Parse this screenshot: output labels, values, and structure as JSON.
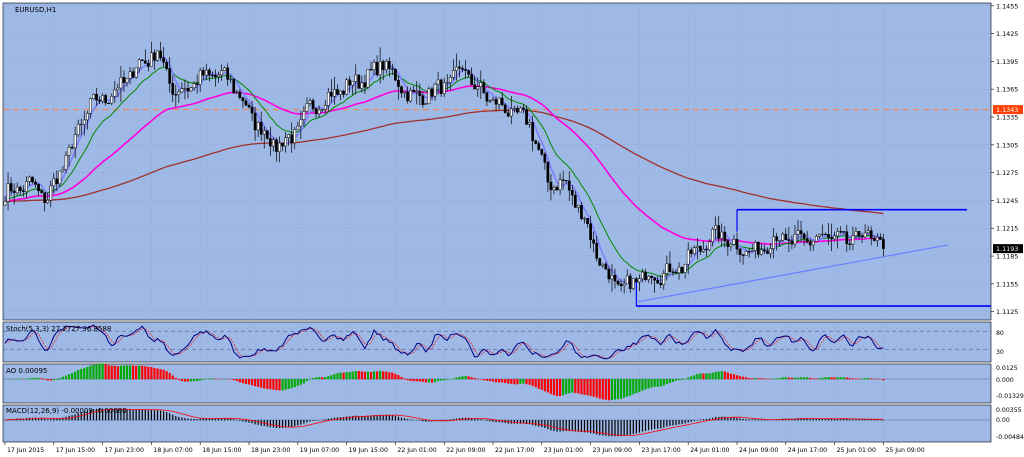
{
  "window": {
    "symbol_label": "EURUSD,H1"
  },
  "colors": {
    "plot_bg": "#9fb9e6",
    "grid": "#8aa2cf",
    "candle": "#000000",
    "ma_fast": "#8080ff",
    "ma_mid": "#008800",
    "ma_slow": "#ff00dd",
    "ma_long": "#a0302a",
    "hline": "#ff8040",
    "price_box": "#ff4000",
    "cur_box": "#000000",
    "channel": "#0000ff",
    "trend": "#6a7cff",
    "stoch_main": "#000080",
    "stoch_signal": "#ff0000",
    "ao_up": "#00aa00",
    "ao_down": "#ff0000",
    "macd_hist": "#000000",
    "macd_signal": "#ff0000"
  },
  "price_axis": {
    "labels": [
      "1.1455",
      "1.1425",
      "1.1395",
      "1.1365",
      "1.1335",
      "1.1305",
      "1.1275",
      "1.1245",
      "1.1215",
      "1.1185",
      "1.1155",
      "1.1125"
    ],
    "hline_label": "1.1343",
    "current_label": "1.1193"
  },
  "time_axis": {
    "labels": [
      "17 Jun 2015",
      "17 Jun 15:00",
      "17 Jun 23:00",
      "18 Jun 07:00",
      "18 Jun 15:00",
      "18 Jun 23:00",
      "19 Jun 07:00",
      "19 Jun 15:00",
      "22 Jun 01:00",
      "22 Jun 09:00",
      "22 Jun 17:00",
      "23 Jun 01:00",
      "23 Jun 09:00",
      "23 Jun 17:00",
      "24 Jun 01:00",
      "24 Jun 09:00",
      "24 Jun 17:00",
      "25 Jun 01:00",
      "25 Jun 09:00"
    ]
  },
  "stoch": {
    "label": "Stoch(5,3,3) 27.2727 36.8588",
    "levels": [
      "80",
      "30"
    ]
  },
  "ao": {
    "label": "AO 0.00095",
    "levels": [
      "0.0125",
      "0.000",
      "-0.01329"
    ]
  },
  "macd": {
    "label": "MACD(12,26,9) -0.00009 -0.00080",
    "levels": [
      "0.00355",
      "0.00",
      "-0.00484"
    ]
  },
  "chart_data": {
    "type": "candlestick",
    "symbol": "EURUSD",
    "timeframe": "H1",
    "price_range": [
      1.1116,
      1.1458
    ],
    "horizontal_line": 1.1343,
    "current_price": 1.1193,
    "channel_lines": [
      1.1235,
      1.1131
    ],
    "keypoints": [
      [
        0,
        1.1252
      ],
      [
        8,
        1.1263
      ],
      [
        14,
        1.1247
      ],
      [
        20,
        1.129
      ],
      [
        28,
        1.1348
      ],
      [
        36,
        1.1362
      ],
      [
        44,
        1.1392
      ],
      [
        50,
        1.1405
      ],
      [
        56,
        1.136
      ],
      [
        62,
        1.1372
      ],
      [
        68,
        1.1382
      ],
      [
        74,
        1.1375
      ],
      [
        80,
        1.134
      ],
      [
        88,
        1.1305
      ],
      [
        94,
        1.1312
      ],
      [
        100,
        1.1345
      ],
      [
        108,
        1.136
      ],
      [
        114,
        1.1372
      ],
      [
        120,
        1.138
      ],
      [
        124,
        1.1395
      ],
      [
        128,
        1.1375
      ],
      [
        134,
        1.1355
      ],
      [
        140,
        1.1362
      ],
      [
        146,
        1.1372
      ],
      [
        150,
        1.139
      ],
      [
        154,
        1.1368
      ],
      [
        160,
        1.1352
      ],
      [
        166,
        1.134
      ],
      [
        172,
        1.133
      ],
      [
        178,
        1.1265
      ],
      [
        184,
        1.1262
      ],
      [
        190,
        1.1225
      ],
      [
        196,
        1.1172
      ],
      [
        202,
        1.1148
      ],
      [
        210,
        1.1165
      ],
      [
        216,
        1.1166
      ],
      [
        222,
        1.1175
      ],
      [
        228,
        1.1195
      ],
      [
        234,
        1.121
      ],
      [
        240,
        1.1195
      ],
      [
        246,
        1.1188
      ],
      [
        252,
        1.1205
      ],
      [
        258,
        1.12
      ],
      [
        264,
        1.1203
      ],
      [
        270,
        1.1206
      ],
      [
        276,
        1.12
      ],
      [
        282,
        1.121
      ],
      [
        288,
        1.1193
      ]
    ]
  }
}
